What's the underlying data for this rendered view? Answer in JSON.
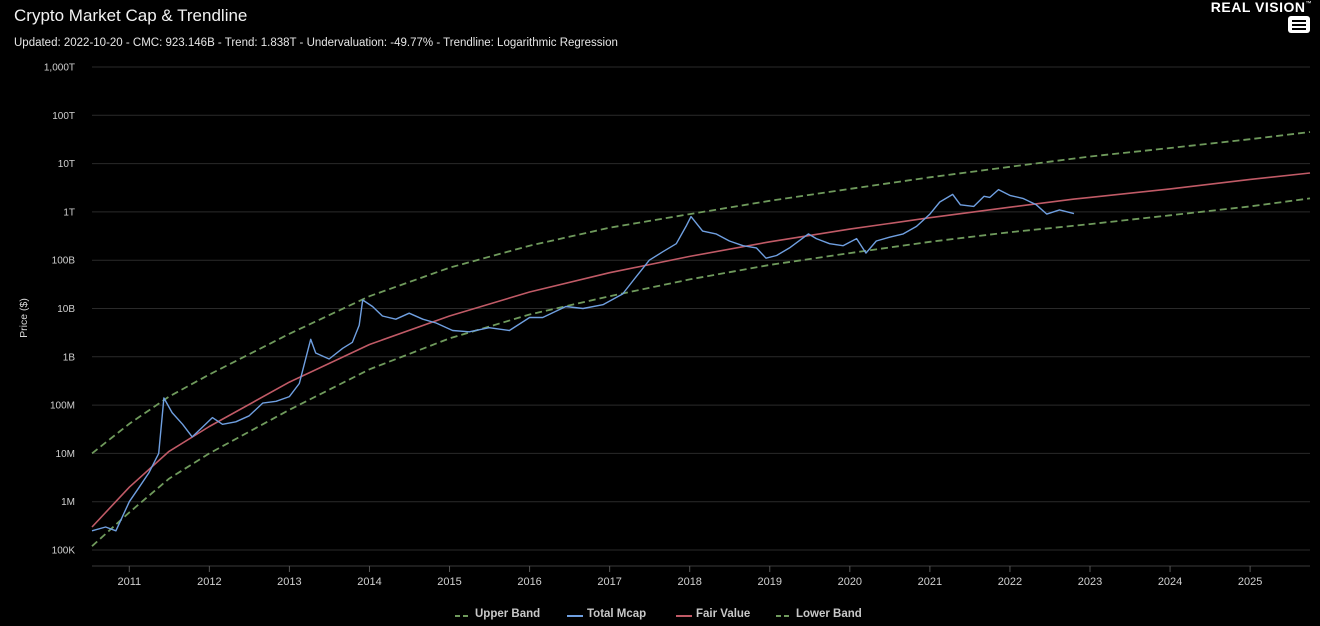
{
  "header": {
    "title": "Crypto Market Cap & Trendline",
    "subtitle": "Updated: 2022-10-20 - CMC: 923.146B - Trend: 1.838T - Undervaluation: -49.77% - Trendline: Logarithmic Regression",
    "brand": "REAL VISION",
    "brand_mark": "™",
    "menu_icon": "hamburger-menu-icon"
  },
  "colors": {
    "background": "#000000",
    "grid": "#2a2a2a",
    "upper_band": "#6f9a5c",
    "total_mcap": "#6f9fe0",
    "fair_value": "#c05a66",
    "lower_band": "#6f9a5c"
  },
  "chart_data": {
    "type": "line",
    "title": "Crypto Market Cap & Trendline",
    "ylabel": "Price ($)",
    "yscale": "log",
    "ylim": [
      100000,
      1000000000000000
    ],
    "xlim": [
      "2010-07-15",
      "2025-10-01"
    ],
    "grid": true,
    "legend_position": "bottom",
    "y_ticks": [
      {
        "value": 100000,
        "label": "100K"
      },
      {
        "value": 1000000,
        "label": "1M"
      },
      {
        "value": 10000000,
        "label": "10M"
      },
      {
        "value": 100000000,
        "label": "100M"
      },
      {
        "value": 1000000000,
        "label": "1B"
      },
      {
        "value": 10000000000,
        "label": "10B"
      },
      {
        "value": 100000000000,
        "label": "100B"
      },
      {
        "value": 1000000000000,
        "label": "1T"
      },
      {
        "value": 10000000000000,
        "label": "10T"
      },
      {
        "value": 100000000000000,
        "label": "100T"
      },
      {
        "value": 1000000000000000,
        "label": "1,000T"
      }
    ],
    "x_ticks": [
      "2011",
      "2012",
      "2013",
      "2014",
      "2015",
      "2016",
      "2017",
      "2018",
      "2019",
      "2020",
      "2021",
      "2022",
      "2023",
      "2024",
      "2025"
    ],
    "series": [
      {
        "name": "Upper Band",
        "style": "dashed",
        "color": "#6f9a5c",
        "x": [
          "2010-07-15",
          "2011-01-01",
          "2011-07-01",
          "2012-01-01",
          "2013-01-01",
          "2014-01-01",
          "2015-01-01",
          "2016-01-01",
          "2017-01-01",
          "2018-01-01",
          "2019-01-01",
          "2020-01-01",
          "2021-01-01",
          "2022-01-01",
          "2023-01-01",
          "2024-01-01",
          "2025-01-01",
          "2025-10-01"
        ],
        "y": [
          10000000,
          41000000,
          150000000,
          430000000,
          3000000000,
          18000000000,
          70000000000,
          200000000000,
          470000000000,
          900000000000,
          1700000000000,
          3000000000000,
          5200000000000,
          8600000000000,
          14000000000000,
          21000000000000,
          32000000000000,
          45000000000000
        ]
      },
      {
        "name": "Total Mcap",
        "style": "solid",
        "color": "#6f9fe0",
        "x": [
          "2010-07-15",
          "2010-09-15",
          "2010-11-01",
          "2011-01-01",
          "2011-02-15",
          "2011-04-01",
          "2011-05-15",
          "2011-06-08",
          "2011-07-15",
          "2011-09-01",
          "2011-10-15",
          "2011-12-01",
          "2012-01-15",
          "2012-03-01",
          "2012-05-01",
          "2012-07-01",
          "2012-09-01",
          "2012-11-01",
          "2013-01-01",
          "2013-02-15",
          "2013-04-08",
          "2013-05-01",
          "2013-07-01",
          "2013-09-01",
          "2013-10-15",
          "2013-11-15",
          "2013-12-01",
          "2014-01-15",
          "2014-03-01",
          "2014-05-01",
          "2014-07-01",
          "2014-09-01",
          "2014-11-01",
          "2015-01-15",
          "2015-04-01",
          "2015-07-01",
          "2015-10-01",
          "2016-01-01",
          "2016-03-01",
          "2016-06-15",
          "2016-09-01",
          "2016-12-01",
          "2017-03-01",
          "2017-05-01",
          "2017-07-01",
          "2017-09-01",
          "2017-11-01",
          "2017-12-15",
          "2018-01-07",
          "2018-03-01",
          "2018-05-01",
          "2018-07-01",
          "2018-09-01",
          "2018-11-01",
          "2018-12-15",
          "2019-02-01",
          "2019-04-01",
          "2019-06-26",
          "2019-08-01",
          "2019-10-01",
          "2019-12-01",
          "2020-02-01",
          "2020-03-15",
          "2020-05-01",
          "2020-07-01",
          "2020-09-01",
          "2020-11-01",
          "2021-01-01",
          "2021-02-15",
          "2021-04-15",
          "2021-05-20",
          "2021-07-20",
          "2021-09-05",
          "2021-10-01",
          "2021-11-10",
          "2022-01-01",
          "2022-03-01",
          "2022-05-01",
          "2022-06-18",
          "2022-08-15",
          "2022-10-20"
        ],
        "y": [
          250000,
          300000,
          250000,
          1000000,
          2000000,
          4000000,
          10000000,
          140000000,
          70000000,
          40000000,
          22000000,
          35000000,
          55000000,
          40000000,
          45000000,
          60000000,
          110000000,
          120000000,
          150000000,
          280000000,
          2300000000,
          1200000000,
          900000000,
          1500000000,
          2000000000,
          4500000000,
          15000000000,
          11000000000,
          7000000000,
          6000000000,
          8000000000,
          6000000000,
          5000000000,
          3500000000,
          3300000000,
          4000000000,
          3500000000,
          6500000000,
          6500000000,
          11000000000,
          10000000000,
          12000000000,
          20000000000,
          45000000000,
          100000000000,
          150000000000,
          220000000000,
          500000000000,
          800000000000,
          400000000000,
          350000000000,
          250000000000,
          200000000000,
          180000000000,
          110000000000,
          125000000000,
          180000000000,
          350000000000,
          280000000000,
          220000000000,
          200000000000,
          280000000000,
          140000000000,
          250000000000,
          300000000000,
          350000000000,
          500000000000,
          900000000000,
          1600000000000,
          2300000000000,
          1400000000000,
          1300000000000,
          2100000000000,
          2000000000000,
          2900000000000,
          2200000000000,
          1900000000000,
          1400000000000,
          900000000000,
          1100000000000,
          923000000000
        ]
      },
      {
        "name": "Fair Value",
        "style": "solid",
        "color": "#c05a66",
        "x": [
          "2010-07-15",
          "2011-01-01",
          "2011-07-01",
          "2012-01-01",
          "2013-01-01",
          "2014-01-01",
          "2015-01-01",
          "2016-01-01",
          "2017-01-01",
          "2018-01-01",
          "2019-01-01",
          "2020-01-01",
          "2021-01-01",
          "2022-01-01",
          "2022-10-20",
          "2023-01-01",
          "2024-01-01",
          "2025-01-01",
          "2025-10-01"
        ],
        "y": [
          300000,
          2000000,
          11000000,
          36000000,
          300000000,
          1800000000,
          7000000000,
          22000000000,
          55000000000,
          120000000000,
          240000000000,
          440000000000,
          760000000000,
          1250000000000,
          1838000000000,
          2000000000000,
          3000000000000,
          4700000000000,
          6400000000000
        ]
      },
      {
        "name": "Lower Band",
        "style": "dashed",
        "color": "#6f9a5c",
        "x": [
          "2010-07-15",
          "2011-01-01",
          "2011-07-01",
          "2012-01-01",
          "2013-01-01",
          "2014-01-01",
          "2015-01-01",
          "2016-01-01",
          "2017-01-01",
          "2018-01-01",
          "2019-01-01",
          "2020-01-01",
          "2021-01-01",
          "2022-01-01",
          "2023-01-01",
          "2024-01-01",
          "2025-01-01",
          "2025-10-01"
        ],
        "y": [
          120000,
          600000,
          3000000,
          10000000,
          80000000,
          550000000,
          2400000000,
          7500000000,
          18000000000,
          40000000000,
          80000000000,
          140000000000,
          240000000000,
          380000000000,
          560000000000,
          850000000000,
          1300000000000,
          1900000000000
        ]
      }
    ]
  }
}
